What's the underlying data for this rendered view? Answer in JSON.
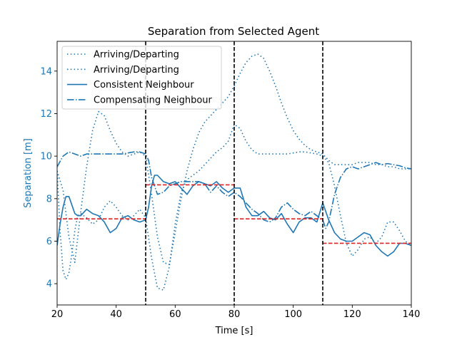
{
  "chart_data": {
    "type": "line",
    "title": "Separation from Selected Agent",
    "xlabel": "Time [s]",
    "ylabel": "Separation [m]",
    "xlim": [
      20,
      140
    ],
    "ylim": [
      3.0,
      15.4
    ],
    "xticks": [
      20,
      40,
      60,
      80,
      100,
      120,
      140
    ],
    "yticks": [
      4,
      6,
      8,
      10,
      12,
      14
    ],
    "legend_position": "upper-left",
    "colors": {
      "series": "#1f77b4",
      "segment_mean": "#d62728",
      "boundary": "#000000",
      "ylabel": "#1f77b4"
    },
    "series": [
      {
        "name": "Arriving/Departing",
        "style": "dotted",
        "x": [
          20,
          22,
          24,
          26,
          28,
          30,
          32,
          34,
          36,
          38,
          40,
          42,
          44,
          46,
          48,
          50,
          52,
          54,
          56,
          58,
          60,
          62,
          64,
          66,
          68,
          70,
          72,
          74,
          76,
          78,
          80,
          82,
          84,
          86,
          88,
          90,
          92,
          94,
          96,
          98,
          100,
          102,
          104,
          106,
          108,
          110,
          112,
          114,
          116,
          118,
          120,
          122,
          124,
          126,
          128,
          130,
          132,
          134,
          136,
          138,
          140
        ],
        "y": [
          9.3,
          8.4,
          6.2,
          5.0,
          7.4,
          9.5,
          11.2,
          12.1,
          11.9,
          11.2,
          10.6,
          10.2,
          10.0,
          10.1,
          10.2,
          10.0,
          8.2,
          6.2,
          5.0,
          4.9,
          6.4,
          8.0,
          9.3,
          10.3,
          11.1,
          11.6,
          11.9,
          12.2,
          12.5,
          12.8,
          13.3,
          13.9,
          14.4,
          14.7,
          14.8,
          14.6,
          14.0,
          13.3,
          12.5,
          11.8,
          11.2,
          10.8,
          10.5,
          10.3,
          10.2,
          10.1,
          9.8,
          9.6,
          9.6,
          9.6,
          9.6,
          9.7,
          9.7,
          9.7,
          9.6,
          9.6,
          9.5,
          9.5,
          9.4,
          9.4,
          9.4
        ]
      },
      {
        "name": "Arriving/Departing",
        "style": "dotted",
        "x": [
          20,
          21,
          22,
          23,
          24,
          25,
          26,
          27,
          28,
          30,
          32,
          34,
          36,
          38,
          40,
          42,
          44,
          46,
          48,
          50,
          52,
          54,
          56,
          58,
          60,
          62,
          64,
          66,
          68,
          70,
          72,
          74,
          76,
          78,
          80,
          82,
          84,
          86,
          88,
          90,
          92,
          94,
          96,
          98,
          100,
          102,
          104,
          106,
          108,
          110,
          112,
          114,
          116,
          118,
          120,
          122,
          124,
          126,
          128,
          130,
          132,
          134,
          136,
          138,
          140
        ],
        "y": [
          9.3,
          6.5,
          4.6,
          4.2,
          4.5,
          5.4,
          6.5,
          7.2,
          7.3,
          7.1,
          6.8,
          7.0,
          7.6,
          7.9,
          7.6,
          7.2,
          7.0,
          7.2,
          7.5,
          7.1,
          5.2,
          3.8,
          3.7,
          4.8,
          6.8,
          8.3,
          8.9,
          9.1,
          9.3,
          9.6,
          9.9,
          10.2,
          10.4,
          10.7,
          11.5,
          11.3,
          10.7,
          10.3,
          10.1,
          10.1,
          10.1,
          10.1,
          10.1,
          10.1,
          10.15,
          10.2,
          10.2,
          10.15,
          10.1,
          10.0,
          9.7,
          8.6,
          7.2,
          5.9,
          5.3,
          5.6,
          6.1,
          6.2,
          5.9,
          6.2,
          6.9,
          6.9,
          6.5,
          6.0,
          5.8
        ]
      },
      {
        "name": "Consistent Neighbour",
        "style": "solid",
        "x": [
          20,
          21,
          22,
          23,
          24,
          25,
          26,
          27,
          28,
          30,
          32,
          34,
          36,
          38,
          40,
          42,
          44,
          46,
          48,
          50,
          51,
          52,
          53,
          54,
          56,
          58,
          60,
          62,
          64,
          66,
          68,
          70,
          72,
          74,
          76,
          78,
          80,
          82,
          84,
          86,
          88,
          90,
          92,
          94,
          96,
          98,
          100,
          102,
          104,
          106,
          108,
          110,
          112,
          114,
          116,
          118,
          120,
          122,
          124,
          126,
          128,
          130,
          132,
          134,
          136,
          138,
          140
        ],
        "y": [
          5.8,
          6.8,
          7.6,
          8.1,
          8.1,
          7.7,
          7.3,
          7.2,
          7.2,
          7.5,
          7.3,
          7.2,
          6.9,
          6.4,
          6.6,
          7.1,
          7.2,
          7.0,
          6.9,
          7.0,
          7.6,
          8.6,
          9.1,
          9.1,
          8.8,
          8.7,
          8.8,
          8.5,
          8.2,
          8.6,
          8.8,
          8.7,
          8.6,
          8.8,
          8.5,
          8.3,
          8.5,
          8.5,
          7.6,
          7.2,
          7.2,
          7.4,
          7.1,
          7.0,
          7.3,
          6.8,
          6.4,
          6.9,
          7.1,
          7.1,
          6.9,
          7.8,
          7.0,
          6.4,
          6.1,
          6.0,
          6.0,
          6.2,
          6.4,
          6.3,
          5.8,
          5.5,
          5.3,
          5.5,
          5.9,
          5.9,
          5.8
        ]
      },
      {
        "name": "Compensating Neighbour",
        "style": "dashdot",
        "x": [
          20,
          22,
          24,
          26,
          28,
          30,
          34,
          38,
          42,
          46,
          48,
          50,
          51,
          52,
          54,
          56,
          58,
          60,
          62,
          64,
          66,
          68,
          70,
          72,
          74,
          76,
          78,
          80,
          82,
          84,
          86,
          88,
          90,
          92,
          94,
          96,
          98,
          100,
          102,
          104,
          106,
          108,
          110,
          111,
          112,
          114,
          116,
          118,
          120,
          122,
          124,
          126,
          128,
          130,
          132,
          134,
          136,
          138,
          140
        ],
        "y": [
          9.5,
          10.0,
          10.2,
          10.1,
          10.0,
          10.1,
          10.1,
          10.1,
          10.1,
          10.2,
          10.2,
          10.1,
          9.8,
          9.0,
          8.2,
          8.3,
          8.6,
          8.7,
          8.8,
          8.8,
          8.8,
          8.8,
          8.7,
          8.3,
          8.6,
          8.3,
          8.1,
          8.3,
          8.1,
          7.8,
          7.5,
          7.3,
          7.0,
          6.9,
          7.1,
          7.6,
          7.8,
          7.5,
          7.3,
          7.2,
          7.4,
          7.2,
          7.0,
          6.6,
          6.9,
          8.2,
          9.0,
          9.4,
          9.5,
          9.4,
          9.5,
          9.6,
          9.7,
          9.6,
          9.65,
          9.6,
          9.55,
          9.45,
          9.4
        ]
      }
    ],
    "segment_boundaries": [
      50,
      80,
      110
    ],
    "segment_means": [
      {
        "x0": 20,
        "x1": 50,
        "y": 7.05
      },
      {
        "x0": 50,
        "x1": 80,
        "y": 8.65
      },
      {
        "x0": 80,
        "x1": 110,
        "y": 7.05
      },
      {
        "x0": 110,
        "x1": 140,
        "y": 5.9
      }
    ],
    "legend": [
      {
        "label": "Arriving/Departing",
        "style": "dotted"
      },
      {
        "label": "Arriving/Departing",
        "style": "dotted"
      },
      {
        "label": "Consistent Neighbour",
        "style": "solid"
      },
      {
        "label": "Compensating Neighbour",
        "style": "dashdot"
      }
    ]
  }
}
